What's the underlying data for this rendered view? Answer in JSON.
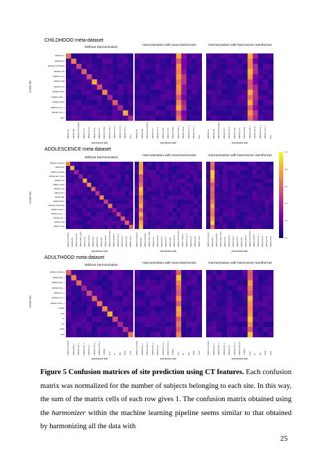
{
  "figure": {
    "sections": [
      {
        "title": "CHILDHOOD meta-dataset",
        "panel_titles": [
          "Without harmonization",
          "Harmonization with neuroHarmonize",
          "Harmonization with harmonizer transformer"
        ],
        "y_axis_label": "actual site",
        "x_axis_label": "predicted site",
        "sites": [
          "ABIDEII-GU",
          "ABIDEII-KKI",
          "ABIDEII-STANFORD",
          "ABIDEII-TCD",
          "ABIDEII-UCLA",
          "ABIDEII-USM",
          "ABIDEII-NYU",
          "ABIDEII-SDSU",
          "ABIDEII-USM_1",
          "ABIDEII-OHSU",
          "ABIDEII-UCLA_1",
          "ABIDEII-TCD_1",
          "BNU"
        ]
      },
      {
        "title": "ADOLESCENCE meta-dataset",
        "panel_titles": [
          "Without harmonization",
          "Harmonization with neuroHarmonize",
          "Harmonization with harmonizer transformer"
        ],
        "y_axis_label": "actual site",
        "x_axis_label": "predicted site",
        "sites": [
          "ABIDEI-CALTECH",
          "ABIDEI-KKI",
          "ABIDEI-LEUVEN",
          "ABIDEI-MAX_MUN",
          "ABIDEI-NYU",
          "ABIDEI-OHSU",
          "ABIDEI-OLIN",
          "ABIDEI-PITT",
          "ABIDEI-SBL",
          "ABIDEI-SDSU",
          "ABIDEI-STANFORD",
          "ABIDEI-TRINITY",
          "ABIDEI-UCLA_1",
          "ABIDEI-UM_1",
          "ABIDEI-USM",
          "ABIDEI-YALE"
        ]
      },
      {
        "title": "ADULTHOOD meta-dataset",
        "panel_titles": [
          "Without harmonization",
          "Harmonization with neuroHarmonize",
          "Harmonization with harmonizer transformer"
        ],
        "y_axis_label": "actual site",
        "x_axis_label": "predicted site",
        "sites": [
          "ABIDEI-CALTECH",
          "ABIDEII-BNI_1",
          "ABIDEII-EMC_1",
          "ABIDEII-ETH_1",
          "ABIDEII-IU_1",
          "ABIDEII-NYU_2",
          "ABIDEII-OHSU_1",
          "COBRE",
          "HCP",
          "IXI",
          "KKI",
          "NIMH",
          "SLIM"
        ]
      }
    ],
    "colorbar": {
      "ticks": [
        "1.0",
        "0.8",
        "0.6",
        "0.4",
        "0.2",
        "0.0"
      ],
      "low_color": "#0d0887",
      "high_color": "#f0f921"
    }
  },
  "caption": {
    "label": "Figure 5 Confusion matrices of site prediction using CT features.",
    "text_1": " Each confusion matrix was normalized for the number of subjects belonging to each site. In this way, the sum of the matrix cells of each row gives 1. The confusion matrix obtained using the ",
    "italic_word": "harmonizer",
    "text_2": " within the machine learning pipeline seems similar to that obtained by harmonizing all the data with"
  },
  "page_number": "25"
}
